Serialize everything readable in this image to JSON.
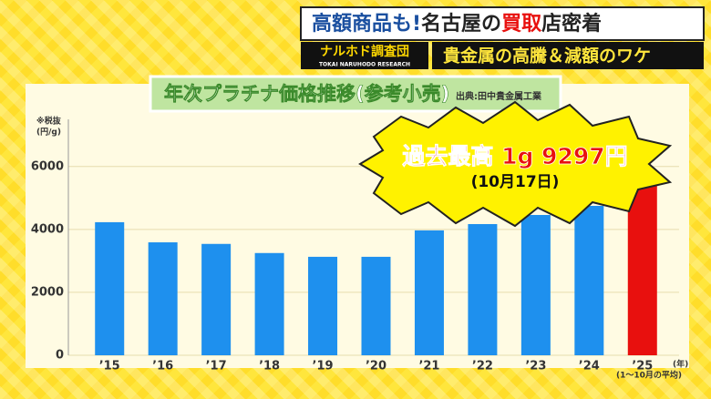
{
  "header": {
    "title_parts": [
      "高額商品も!",
      "名古屋の",
      "買取",
      "店密着"
    ],
    "logo": "ナルホド調査団",
    "logo_sub": "TOKAI NARUHODO RESEARCH",
    "subtitle": "貴金属の高騰＆減額のワケ"
  },
  "chart_data": {
    "type": "bar",
    "title": "年次プラチナ価格推移(参考小売)",
    "source": "出典:田中貴金属工業",
    "y_note": "※税抜",
    "y_unit": "(円/g)",
    "x_unit": "(年)",
    "x_note": "(1～10月の平均)",
    "annotation": "過去最高 1g 9297円",
    "annotation_sub": "(10月17日)",
    "categories": [
      "’15",
      "’16",
      "’17",
      "’18",
      "’19",
      "’20",
      "’21",
      "’22",
      "’23",
      "’24",
      "’25"
    ],
    "values": [
      4230,
      3590,
      3540,
      3250,
      3130,
      3130,
      3970,
      4170,
      4460,
      4750,
      5740
    ],
    "colors": [
      "#1e90ee",
      "#1e90ee",
      "#1e90ee",
      "#1e90ee",
      "#1e90ee",
      "#1e90ee",
      "#1e90ee",
      "#1e90ee",
      "#1e90ee",
      "#1e90ee",
      "#e8100e"
    ],
    "ylim": [
      0,
      7500
    ],
    "yticks": [
      0,
      2000,
      4000,
      6000
    ],
    "grid": true
  }
}
